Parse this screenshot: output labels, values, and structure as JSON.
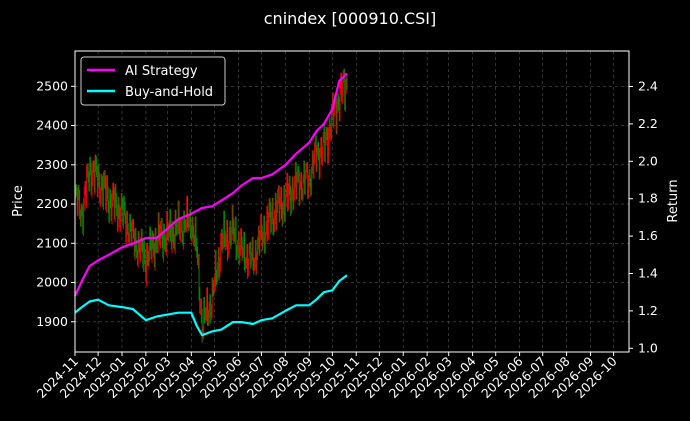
{
  "chart_data": {
    "type": "line",
    "title": "cnindex [000910.CSI]",
    "ylabel_left": "Price",
    "ylabel_right": "Return",
    "ylim_left": [
      1823,
      2590
    ],
    "ylim_right": [
      0.98,
      2.59
    ],
    "yticks_left": [
      1900,
      2000,
      2100,
      2200,
      2300,
      2400,
      2500
    ],
    "yticks_right": [
      1.0,
      1.2,
      1.4,
      1.6,
      1.8,
      2.0,
      2.2,
      2.4
    ],
    "xlim": [
      "2024-11-01",
      "2026-10-21"
    ],
    "xticks": [
      "2024-11",
      "2024-12",
      "2025-01",
      "2025-02",
      "2025-03",
      "2025-04",
      "2025-05",
      "2025-06",
      "2025-07",
      "2025-08",
      "2025-09",
      "2025-10",
      "2025-11",
      "2025-12",
      "2026-01",
      "2026-02",
      "2026-03",
      "2026-04",
      "2026-05",
      "2026-06",
      "2026-07",
      "2026-08",
      "2026-09",
      "2026-10"
    ],
    "grid": true,
    "legend": {
      "placement": "top-left"
    },
    "colors": {
      "ai": "#ff00ff",
      "bh": "#00ffff",
      "up": "#e00000",
      "down": "#008800",
      "grid": "#555555"
    },
    "series": [
      {
        "name": "AI Strategy",
        "axis": "right",
        "x": [
          "2024-11-01",
          "2024-11-10",
          "2024-11-20",
          "2024-12-01",
          "2024-12-15",
          "2025-01-01",
          "2025-01-15",
          "2025-02-01",
          "2025-02-15",
          "2025-03-01",
          "2025-03-15",
          "2025-04-01",
          "2025-04-15",
          "2025-04-28",
          "2025-05-10",
          "2025-05-25",
          "2025-06-05",
          "2025-06-20",
          "2025-07-01",
          "2025-07-15",
          "2025-08-01",
          "2025-08-15",
          "2025-09-01",
          "2025-09-10",
          "2025-09-20",
          "2025-10-01",
          "2025-10-10",
          "2025-10-20"
        ],
        "values": [
          1.28,
          1.36,
          1.44,
          1.47,
          1.5,
          1.54,
          1.56,
          1.59,
          1.59,
          1.64,
          1.69,
          1.72,
          1.75,
          1.76,
          1.79,
          1.83,
          1.87,
          1.91,
          1.91,
          1.93,
          1.98,
          2.04,
          2.1,
          2.16,
          2.2,
          2.28,
          2.43,
          2.47
        ]
      },
      {
        "name": "Buy-and-Hold",
        "axis": "right",
        "x": [
          "2024-11-01",
          "2024-11-10",
          "2024-11-20",
          "2024-12-01",
          "2024-12-15",
          "2025-01-01",
          "2025-01-15",
          "2025-02-01",
          "2025-02-15",
          "2025-03-01",
          "2025-03-15",
          "2025-04-01",
          "2025-04-08",
          "2025-04-15",
          "2025-04-28",
          "2025-05-10",
          "2025-05-25",
          "2025-06-05",
          "2025-06-20",
          "2025-07-01",
          "2025-07-15",
          "2025-08-01",
          "2025-08-15",
          "2025-09-01",
          "2025-09-10",
          "2025-09-20",
          "2025-10-01",
          "2025-10-10",
          "2025-10-20"
        ],
        "values": [
          1.19,
          1.22,
          1.25,
          1.26,
          1.23,
          1.22,
          1.21,
          1.15,
          1.17,
          1.18,
          1.19,
          1.19,
          1.12,
          1.07,
          1.09,
          1.1,
          1.14,
          1.14,
          1.13,
          1.15,
          1.16,
          1.2,
          1.23,
          1.23,
          1.26,
          1.3,
          1.31,
          1.36,
          1.39
        ]
      }
    ],
    "price_candles": {
      "axis": "left",
      "x": [
        "2024-11-01",
        "2024-11-10",
        "2024-11-20",
        "2024-12-01",
        "2024-12-15",
        "2025-01-01",
        "2025-01-15",
        "2025-02-01",
        "2025-02-15",
        "2025-03-01",
        "2025-03-15",
        "2025-04-01",
        "2025-04-08",
        "2025-04-15",
        "2025-04-28",
        "2025-05-10",
        "2025-05-25",
        "2025-06-05",
        "2025-06-20",
        "2025-07-01",
        "2025-07-15",
        "2025-08-01",
        "2025-08-15",
        "2025-09-01",
        "2025-09-10",
        "2025-09-20",
        "2025-10-01",
        "2025-10-10",
        "2025-10-20"
      ],
      "close": [
        2220,
        2180,
        2290,
        2260,
        2210,
        2180,
        2120,
        2060,
        2110,
        2120,
        2140,
        2160,
        2080,
        1890,
        1960,
        2100,
        2130,
        2080,
        2060,
        2120,
        2170,
        2210,
        2250,
        2270,
        2330,
        2340,
        2420,
        2470,
        2510
      ]
    }
  }
}
